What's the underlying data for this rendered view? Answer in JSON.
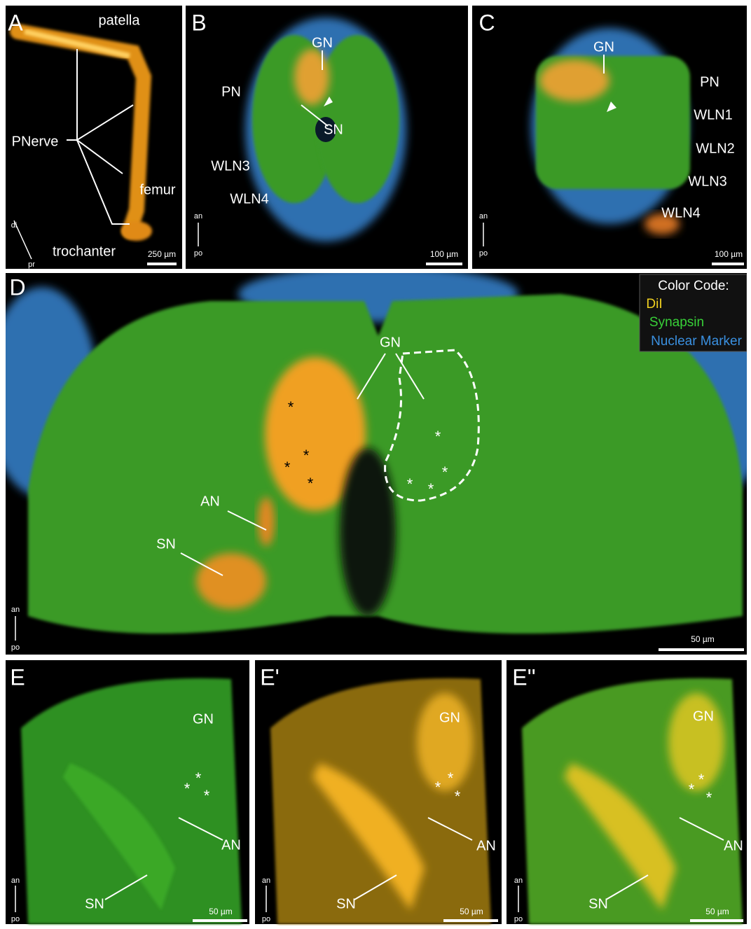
{
  "panels": [
    {
      "letter": "A",
      "labels": [
        "patella",
        "PNerve",
        "femur",
        "trochanter"
      ],
      "scale_bar": "250 µm",
      "axis": [
        "di",
        "pr"
      ]
    },
    {
      "letter": "B",
      "labels": [
        "GN",
        "PN",
        "SN",
        "WLN3",
        "WLN4"
      ],
      "scale_bar": "100 µm",
      "axis": [
        "an",
        "po"
      ]
    },
    {
      "letter": "C",
      "labels": [
        "GN",
        "PN",
        "WLN1",
        "WLN2",
        "WLN3",
        "WLN4"
      ],
      "scale_bar": "100 µm",
      "axis": [
        "an",
        "po"
      ]
    },
    {
      "letter": "D",
      "labels": [
        "GN",
        "AN",
        "SN"
      ],
      "scale_bar": "50 µm",
      "axis": [
        "an",
        "po"
      ]
    },
    {
      "letter": "E",
      "labels": [
        "GN",
        "AN",
        "SN"
      ],
      "scale_bar": "50 µm",
      "axis": [
        "an",
        "po"
      ]
    },
    {
      "letter": "E'",
      "labels": [
        "GN",
        "AN",
        "SN"
      ],
      "scale_bar": "50 µm",
      "axis": [
        "an",
        "po"
      ]
    },
    {
      "letter": "E''",
      "labels": [
        "GN",
        "AN",
        "SN"
      ],
      "scale_bar": "50 µm",
      "axis": [
        "an",
        "po"
      ]
    }
  ],
  "legend": {
    "title": "Color Code:",
    "items": [
      "DiI",
      "Synapsin",
      "Nuclear Marker"
    ]
  },
  "asterisk": "*"
}
